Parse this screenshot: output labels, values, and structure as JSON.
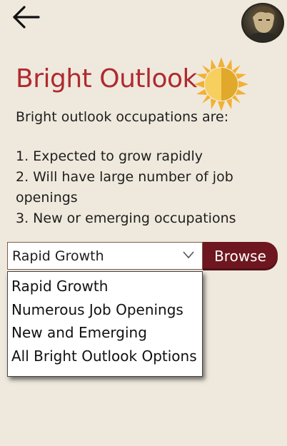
{
  "header": {
    "back_icon": "arrow-left-icon",
    "avatar_icon": "user-avatar-icon"
  },
  "hero": {
    "title": "Bright Outlook",
    "sun_icon": "sun-icon",
    "title_color": "#b02a30"
  },
  "intro": "Bright outlook occupations are:",
  "criteria": [
    "1. Expected to grow rapidly",
    "2. Will have large number of job openings",
    "3. New or emerging occupations"
  ],
  "filter": {
    "selected": "Rapid Growth",
    "options": [
      "Rapid Growth",
      "Numerous Job Openings",
      "New and Emerging",
      "All Bright Outlook Options"
    ]
  },
  "browse_label": "Browse",
  "colors": {
    "background": "#efe9dd",
    "accent": "#6e1720",
    "sun": "#f2b134"
  }
}
